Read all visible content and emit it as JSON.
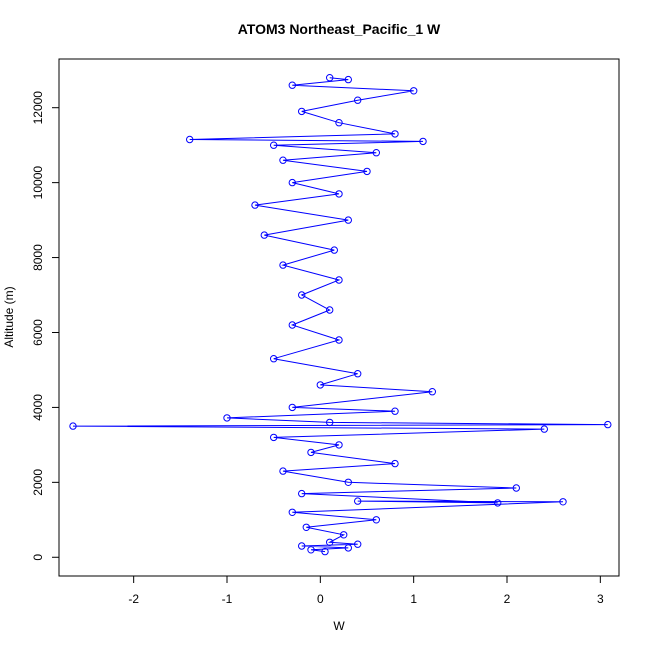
{
  "chart_data": {
    "type": "line",
    "title": "ATOM3 Northeast_Pacific_1 W",
    "xlabel": "W",
    "ylabel": "Altitude (m)",
    "xlim": [
      -2.8,
      3.2
    ],
    "ylim": [
      -500,
      13300
    ],
    "x_ticks": [
      -2,
      -1,
      0,
      1,
      2,
      3
    ],
    "x_tick_labels": [
      "-2",
      "-1",
      "0",
      "1",
      "2",
      "3"
    ],
    "y_ticks": [
      0,
      2000,
      4000,
      6000,
      8000,
      10000,
      12000
    ],
    "y_tick_labels": [
      "0",
      "2000",
      "4000",
      "6000",
      "8000",
      "10000",
      "12000"
    ],
    "grid": false,
    "legend": "none",
    "series": [
      {
        "color": "#0000ff",
        "marker": "open-circle",
        "line": true,
        "points": [
          [
            0.05,
            150
          ],
          [
            -0.1,
            200
          ],
          [
            0.3,
            250
          ],
          [
            -0.2,
            300
          ],
          [
            0.4,
            350
          ],
          [
            0.1,
            400
          ],
          [
            0.25,
            600
          ],
          [
            -0.15,
            800
          ],
          [
            0.6,
            1000
          ],
          [
            -0.3,
            1200
          ],
          [
            2.6,
            1480
          ],
          [
            0.4,
            1500
          ],
          [
            1.9,
            1450
          ],
          [
            -0.2,
            1700
          ],
          [
            2.1,
            1850
          ],
          [
            0.3,
            2000
          ],
          [
            -0.4,
            2300
          ],
          [
            0.8,
            2500
          ],
          [
            -0.1,
            2800
          ],
          [
            0.2,
            3000
          ],
          [
            -0.5,
            3200
          ],
          [
            2.4,
            3420
          ],
          [
            -2.65,
            3500
          ],
          [
            3.08,
            3540
          ],
          [
            0.1,
            3600
          ],
          [
            -1.0,
            3720
          ],
          [
            0.8,
            3900
          ],
          [
            -0.3,
            4000
          ],
          [
            1.2,
            4420
          ],
          [
            0.0,
            4600
          ],
          [
            0.4,
            4900
          ],
          [
            -0.5,
            5300
          ],
          [
            0.2,
            5800
          ],
          [
            -0.3,
            6200
          ],
          [
            0.1,
            6600
          ],
          [
            -0.2,
            7000
          ],
          [
            0.2,
            7400
          ],
          [
            -0.4,
            7800
          ],
          [
            0.15,
            8200
          ],
          [
            -0.6,
            8600
          ],
          [
            0.3,
            9000
          ],
          [
            -0.7,
            9400
          ],
          [
            0.2,
            9700
          ],
          [
            -0.3,
            10000
          ],
          [
            0.5,
            10300
          ],
          [
            -0.4,
            10600
          ],
          [
            0.6,
            10800
          ],
          [
            -0.5,
            11000
          ],
          [
            1.1,
            11100
          ],
          [
            -1.4,
            11150
          ],
          [
            0.8,
            11300
          ],
          [
            0.2,
            11600
          ],
          [
            -0.2,
            11900
          ],
          [
            0.4,
            12200
          ],
          [
            1.0,
            12450
          ],
          [
            -0.3,
            12600
          ],
          [
            0.3,
            12750
          ],
          [
            0.1,
            12800
          ]
        ]
      }
    ]
  }
}
